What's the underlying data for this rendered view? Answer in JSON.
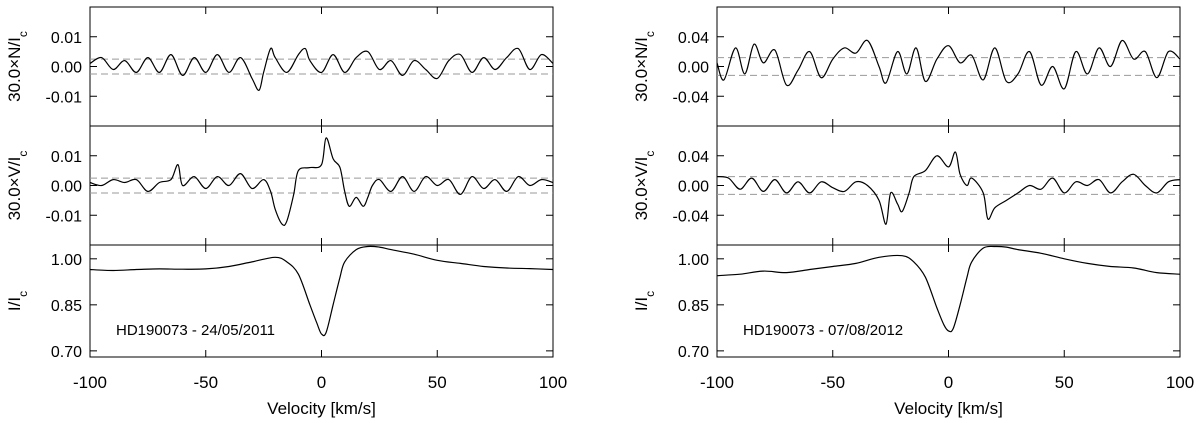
{
  "chart_data": [
    {
      "type": "line",
      "star_label": "HD190073 - 24/05/2011",
      "xlabel": "Velocity [km/s]",
      "xlim": [
        -100,
        100
      ],
      "xticks": [
        -100,
        -50,
        0,
        50,
        100
      ],
      "xtick_labels": [
        "-100",
        "-50",
        "0",
        "50",
        "100"
      ],
      "panels": [
        {
          "id": "N",
          "ylabel_main": "30.0×N/I",
          "ylabel_sub": "c",
          "ylim": [
            -0.02,
            0.02
          ],
          "yticks": [
            0.01,
            0.0,
            -0.01
          ],
          "ytick_labels": [
            "0.01",
            "0.00",
            "-0.01"
          ],
          "dashed_lines": [
            0.0025,
            -0.0025
          ],
          "series": {
            "x": [
              -100,
              -95,
              -90,
              -85,
              -80,
              -75,
              -70,
              -65,
              -60,
              -55,
              -50,
              -45,
              -40,
              -35,
              -30,
              -27,
              -25,
              -22,
              -20,
              -15,
              -10,
              -7,
              -5,
              0,
              5,
              10,
              15,
              20,
              25,
              30,
              35,
              40,
              45,
              50,
              55,
              60,
              65,
              70,
              75,
              80,
              85,
              90,
              95,
              100
            ],
            "y": [
              0.001,
              0.003,
              -0.001,
              0.002,
              -0.002,
              0.003,
              -0.002,
              0.004,
              -0.003,
              0.003,
              -0.002,
              0.004,
              -0.002,
              0.003,
              -0.004,
              -0.008,
              -0.002,
              0.006,
              0.003,
              -0.002,
              0.004,
              0.006,
              0.002,
              -0.002,
              0.004,
              -0.002,
              0.003,
              0.005,
              -0.001,
              0.002,
              -0.003,
              0.002,
              -0.001,
              -0.004,
              0.002,
              0.004,
              -0.002,
              0.003,
              -0.001,
              0.003,
              0.006,
              -0.001,
              0.004,
              0.001
            ]
          }
        },
        {
          "id": "V",
          "ylabel_main": "30.0×V/I",
          "ylabel_sub": "c",
          "ylim": [
            -0.02,
            0.02
          ],
          "yticks": [
            0.01,
            0.0,
            -0.01
          ],
          "ytick_labels": [
            "0.01",
            "0.00",
            "-0.01"
          ],
          "dashed_lines": [
            0.0025,
            -0.0025
          ],
          "series": {
            "x": [
              -100,
              -95,
              -90,
              -85,
              -80,
              -75,
              -70,
              -65,
              -62,
              -60,
              -55,
              -50,
              -45,
              -40,
              -35,
              -30,
              -25,
              -22,
              -20,
              -17,
              -15,
              -12,
              -10,
              -5,
              0,
              2,
              5,
              8,
              10,
              12,
              15,
              18,
              20,
              22,
              25,
              30,
              35,
              40,
              45,
              50,
              55,
              60,
              65,
              70,
              75,
              80,
              85,
              90,
              95,
              100
            ],
            "y": [
              0.001,
              0.0,
              0.002,
              0.001,
              0.002,
              -0.002,
              0.001,
              0.002,
              0.007,
              0.0,
              0.003,
              -0.001,
              0.003,
              0.0,
              0.004,
              -0.001,
              0.002,
              -0.002,
              -0.008,
              -0.013,
              -0.012,
              -0.003,
              0.005,
              0.006,
              0.007,
              0.016,
              0.009,
              0.006,
              -0.002,
              -0.007,
              -0.004,
              -0.007,
              -0.004,
              0.0,
              0.002,
              -0.002,
              0.003,
              -0.002,
              0.003,
              0.0,
              0.002,
              -0.003,
              0.003,
              -0.001,
              0.002,
              -0.002,
              0.003,
              0.0,
              0.002,
              0.001
            ]
          }
        },
        {
          "id": "I",
          "ylabel_main": "I/I",
          "ylabel_sub": "c",
          "ylim": [
            0.68,
            1.045
          ],
          "yticks": [
            1.0,
            0.85,
            0.7
          ],
          "ytick_labels": [
            "1.00",
            "0.85",
            "0.70"
          ],
          "dashed_lines": [],
          "series": {
            "x": [
              -100,
              -90,
              -80,
              -70,
              -60,
              -50,
              -40,
              -30,
              -20,
              -15,
              -10,
              -5,
              -2,
              0,
              2,
              5,
              8,
              10,
              15,
              20,
              25,
              30,
              40,
              50,
              60,
              70,
              80,
              90,
              100
            ],
            "y": [
              0.965,
              0.962,
              0.965,
              0.967,
              0.966,
              0.967,
              0.975,
              0.99,
              1.005,
              0.99,
              0.95,
              0.85,
              0.79,
              0.755,
              0.76,
              0.85,
              0.94,
              0.99,
              1.03,
              1.04,
              1.038,
              1.03,
              1.015,
              0.995,
              0.985,
              0.975,
              0.97,
              0.968,
              0.965
            ]
          }
        }
      ]
    },
    {
      "type": "line",
      "star_label": "HD190073 - 07/08/2012",
      "xlabel": "Velocity [km/s]",
      "xlim": [
        -100,
        100
      ],
      "xticks": [
        -100,
        -50,
        0,
        50,
        100
      ],
      "xtick_labels": [
        "-100",
        "-50",
        "0",
        "50",
        "100"
      ],
      "panels": [
        {
          "id": "N",
          "ylabel_main": "30.0×N/I",
          "ylabel_sub": "c",
          "ylim": [
            -0.08,
            0.08
          ],
          "yticks": [
            0.04,
            0.0,
            -0.04
          ],
          "ytick_labels": [
            "0.04",
            "0.00",
            "-0.04"
          ],
          "dashed_lines": [
            0.012,
            -0.012
          ],
          "series": {
            "x": [
              -100,
              -97,
              -92,
              -88,
              -84,
              -80,
              -75,
              -70,
              -65,
              -60,
              -55,
              -50,
              -45,
              -40,
              -35,
              -30,
              -27,
              -22,
              -18,
              -14,
              -10,
              -5,
              0,
              5,
              10,
              15,
              20,
              25,
              30,
              35,
              40,
              45,
              50,
              55,
              60,
              65,
              70,
              75,
              80,
              85,
              90,
              95,
              100
            ],
            "y": [
              0.005,
              -0.018,
              0.025,
              -0.01,
              0.03,
              0.005,
              0.022,
              -0.025,
              -0.005,
              0.02,
              -0.015,
              0.01,
              0.025,
              0.018,
              0.035,
              0.0,
              -0.022,
              0.02,
              -0.01,
              0.025,
              -0.02,
              0.01,
              0.028,
              0.005,
              0.015,
              -0.018,
              0.025,
              -0.02,
              -0.01,
              0.02,
              -0.025,
              0.0,
              -0.03,
              0.02,
              -0.01,
              0.025,
              0.0,
              0.035,
              0.01,
              0.02,
              -0.015,
              0.02,
              0.01
            ]
          }
        },
        {
          "id": "V",
          "ylabel_main": "30.0×V/I",
          "ylabel_sub": "c",
          "ylim": [
            -0.08,
            0.08
          ],
          "yticks": [
            0.04,
            0.0,
            -0.04
          ],
          "ytick_labels": [
            "0.04",
            "0.00",
            "-0.04"
          ],
          "dashed_lines": [
            0.012,
            -0.012
          ],
          "series": {
            "x": [
              -100,
              -95,
              -90,
              -85,
              -80,
              -75,
              -70,
              -65,
              -60,
              -55,
              -50,
              -45,
              -40,
              -35,
              -30,
              -27,
              -25,
              -22,
              -20,
              -17,
              -15,
              -10,
              -5,
              0,
              3,
              5,
              8,
              10,
              15,
              17,
              20,
              25,
              30,
              35,
              40,
              45,
              50,
              55,
              60,
              65,
              70,
              75,
              80,
              85,
              90,
              95,
              100
            ],
            "y": [
              0.012,
              0.01,
              -0.005,
              0.01,
              -0.008,
              0.008,
              -0.01,
              0.005,
              -0.01,
              0.005,
              -0.003,
              -0.008,
              0.005,
              0.0,
              -0.02,
              -0.052,
              -0.01,
              -0.025,
              -0.035,
              -0.01,
              0.012,
              0.02,
              0.04,
              0.025,
              0.045,
              0.015,
              0.0,
              0.01,
              -0.01,
              -0.045,
              -0.03,
              -0.02,
              -0.01,
              0.0,
              -0.005,
              0.01,
              -0.01,
              0.005,
              0.0,
              0.008,
              -0.01,
              0.005,
              0.015,
              0.0,
              -0.01,
              0.005,
              0.008
            ]
          }
        },
        {
          "id": "I",
          "ylabel_main": "I/I",
          "ylabel_sub": "c",
          "ylim": [
            0.68,
            1.045
          ],
          "yticks": [
            1.0,
            0.85,
            0.7
          ],
          "ytick_labels": [
            "1.00",
            "0.85",
            "0.70"
          ],
          "dashed_lines": [],
          "series": {
            "x": [
              -100,
              -90,
              -80,
              -70,
              -60,
              -50,
              -40,
              -30,
              -20,
              -15,
              -10,
              -5,
              -2,
              0,
              2,
              5,
              8,
              10,
              15,
              20,
              25,
              30,
              40,
              50,
              60,
              70,
              80,
              90,
              100
            ],
            "y": [
              0.945,
              0.95,
              0.96,
              0.955,
              0.965,
              0.975,
              0.985,
              1.005,
              1.01,
              0.99,
              0.94,
              0.84,
              0.785,
              0.765,
              0.772,
              0.85,
              0.94,
              0.99,
              1.035,
              1.04,
              1.038,
              1.03,
              1.018,
              1.0,
              0.985,
              0.975,
              0.97,
              0.955,
              0.95
            ]
          }
        }
      ]
    }
  ]
}
